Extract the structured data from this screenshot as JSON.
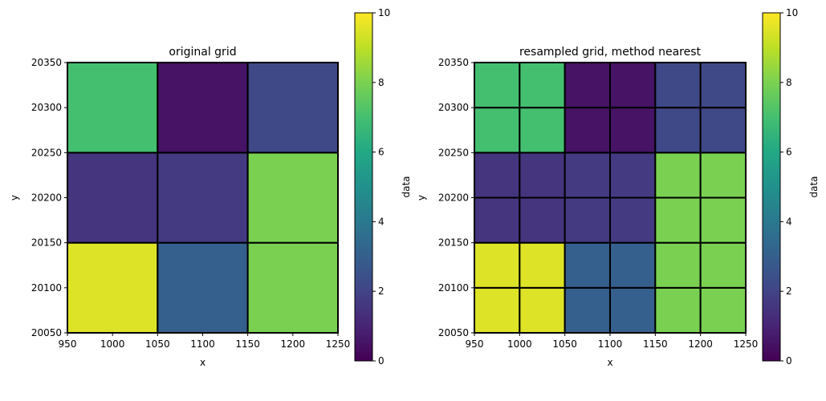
{
  "colorbar": {
    "label": "data",
    "ticks": [
      "0",
      "2",
      "4",
      "6",
      "8",
      "10"
    ],
    "vmin": 0,
    "vmax": 10
  },
  "chart_data": [
    {
      "type": "heatmap",
      "title": "original grid",
      "xlabel": "x",
      "ylabel": "y",
      "xlim": [
        950,
        1250
      ],
      "ylim": [
        20050,
        20350
      ],
      "x_ticks": [
        "950",
        "1000",
        "1050",
        "1100",
        "1150",
        "1200",
        "1250"
      ],
      "y_ticks": [
        "20050",
        "20100",
        "20150",
        "20200",
        "20250",
        "20300",
        "20350"
      ],
      "x_edges": [
        950,
        1050,
        1150,
        1250
      ],
      "y_edges": [
        20050,
        20150,
        20250,
        20350
      ],
      "values": [
        [
          9.5,
          3.0,
          8.0
        ],
        [
          1.5,
          1.7,
          8.0
        ],
        [
          7.0,
          0.5,
          2.2
        ]
      ],
      "colorbar_label": "data",
      "colorbar_range": [
        0,
        10
      ]
    },
    {
      "type": "heatmap",
      "title": "resampled grid, method nearest",
      "xlabel": "x",
      "ylabel": "y",
      "xlim": [
        950,
        1250
      ],
      "ylim": [
        20050,
        20350
      ],
      "x_ticks": [
        "950",
        "1000",
        "1050",
        "1100",
        "1150",
        "1200",
        "1250"
      ],
      "y_ticks": [
        "20050",
        "20100",
        "20150",
        "20200",
        "20250",
        "20300",
        "20350"
      ],
      "x_edges": [
        950,
        1000,
        1050,
        1100,
        1150,
        1200,
        1250
      ],
      "y_edges": [
        20050,
        20100,
        20150,
        20200,
        20250,
        20300,
        20350
      ],
      "values": [
        [
          9.5,
          9.5,
          3.0,
          3.0,
          8.0,
          8.0
        ],
        [
          9.5,
          9.5,
          3.0,
          3.0,
          8.0,
          8.0
        ],
        [
          1.5,
          1.5,
          1.7,
          1.7,
          8.0,
          8.0
        ],
        [
          1.5,
          1.5,
          1.7,
          1.7,
          8.0,
          8.0
        ],
        [
          7.0,
          7.0,
          0.5,
          0.5,
          2.2,
          2.2
        ],
        [
          7.0,
          7.0,
          0.5,
          0.5,
          2.2,
          2.2
        ]
      ],
      "colorbar_label": "data",
      "colorbar_range": [
        0,
        10
      ]
    }
  ]
}
